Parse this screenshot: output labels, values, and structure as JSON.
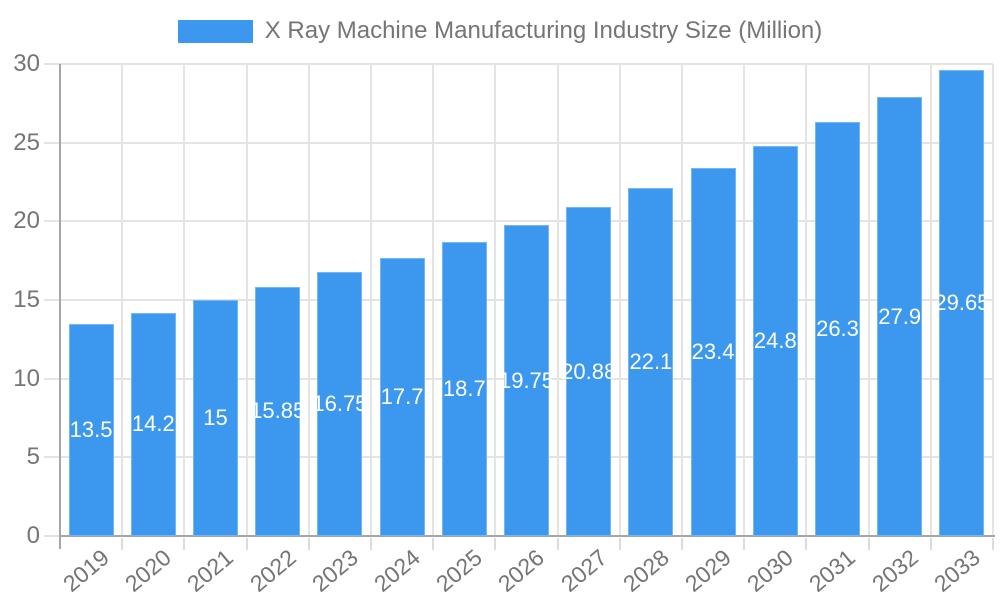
{
  "legend": {
    "swatch_color": "#3b98ee"
  },
  "chart_data": {
    "type": "bar",
    "title": "X Ray Machine Manufacturing Industry Size (Million)",
    "categories": [
      "2019",
      "2020",
      "2021",
      "2022",
      "2023",
      "2024",
      "2025",
      "2026",
      "2027",
      "2028",
      "2029",
      "2030",
      "2031",
      "2032",
      "2033"
    ],
    "values": [
      13.5,
      14.2,
      15,
      15.85,
      16.75,
      17.7,
      18.7,
      19.75,
      20.88,
      22.1,
      23.4,
      24.8,
      26.3,
      27.9,
      29.65
    ],
    "xlabel": "",
    "ylabel": "",
    "ylim": [
      0,
      30
    ],
    "yticks": [
      0,
      5,
      10,
      15,
      20,
      25,
      30
    ],
    "grid": true,
    "legend_position": "top-center",
    "value_labels": "inside-center",
    "bar_color": "#3b98ee",
    "bar_edge_color": "rgba(255,255,255,0.30)",
    "grid_color": "#e4e4e4",
    "tick_color": "#dcdcdc",
    "axis_line_color": "#a6a6a6",
    "text_color": "#757575",
    "value_text_color": "#ffffff"
  }
}
